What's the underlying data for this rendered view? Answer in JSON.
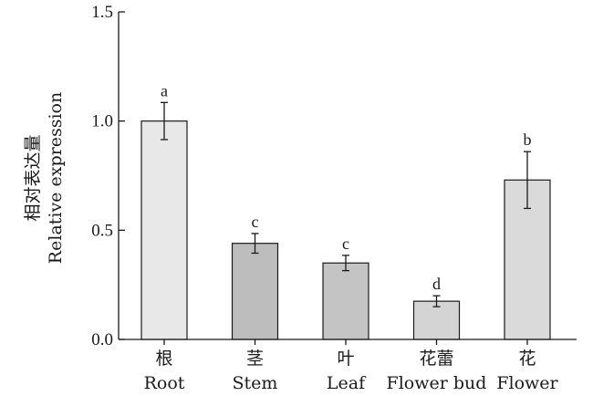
{
  "chart_data": {
    "type": "bar",
    "categories": [
      {
        "zh": "根",
        "en": "Root"
      },
      {
        "zh": "茎",
        "en": "Stem"
      },
      {
        "zh": "叶",
        "en": "Leaf"
      },
      {
        "zh": "花蕾",
        "en": "Flower bud"
      },
      {
        "zh": "花",
        "en": "Flower"
      }
    ],
    "values": [
      1.0,
      0.44,
      0.35,
      0.175,
      0.73
    ],
    "errors": [
      0.085,
      0.045,
      0.035,
      0.025,
      0.13
    ],
    "significance": [
      "a",
      "c",
      "c",
      "d",
      "b"
    ],
    "bar_colors": [
      "#e8e8e8",
      "#bdbdbd",
      "#c4c4c4",
      "#d4d4d4",
      "#dadada"
    ],
    "ylabel_zh": "相对表达量",
    "ylabel_en": "Relative expression",
    "ylim": [
      0,
      1.5
    ],
    "yticks": [
      "0.0",
      "0.5",
      "1.0",
      "1.5"
    ],
    "grid": false,
    "legend": "none"
  }
}
